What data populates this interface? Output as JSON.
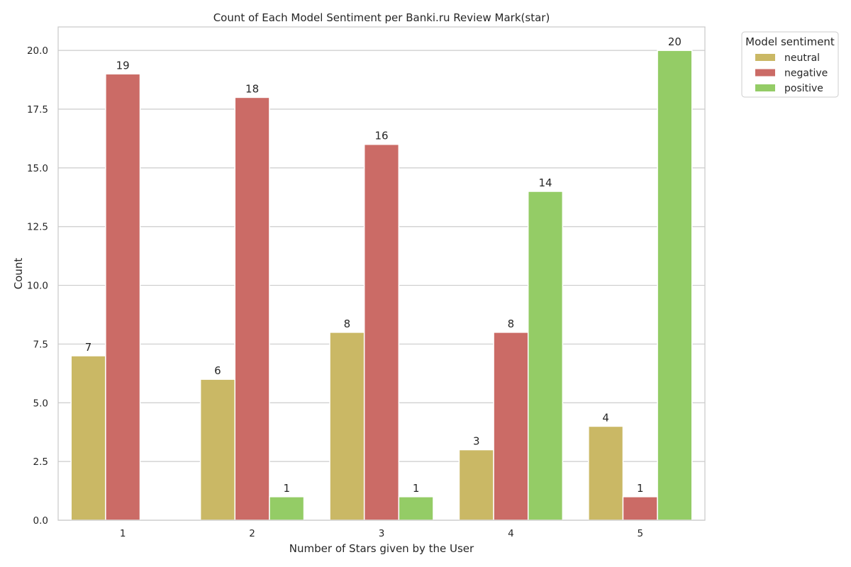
{
  "chart_data": {
    "type": "bar",
    "title": "Count of Each Model Sentiment per Banki.ru Review Mark(star)",
    "xlabel": "Number of Stars given by the User",
    "ylabel": "Count",
    "categories": [
      "1",
      "2",
      "3",
      "4",
      "5"
    ],
    "ylim": [
      0,
      21
    ],
    "yticks": [
      "0.0",
      "2.5",
      "5.0",
      "7.5",
      "10.0",
      "12.5",
      "15.0",
      "17.5",
      "20.0"
    ],
    "grid": "horizontal",
    "legend": {
      "title": "Model sentiment",
      "placement": "outside-top-right"
    },
    "series": [
      {
        "name": "neutral",
        "color": "#CAB865",
        "values": [
          7,
          6,
          8,
          3,
          4
        ]
      },
      {
        "name": "negative",
        "color": "#CB6B66",
        "values": [
          19,
          18,
          16,
          8,
          1
        ]
      },
      {
        "name": "positive",
        "color": "#94CC66",
        "values": [
          null,
          1,
          1,
          14,
          20
        ]
      }
    ]
  }
}
